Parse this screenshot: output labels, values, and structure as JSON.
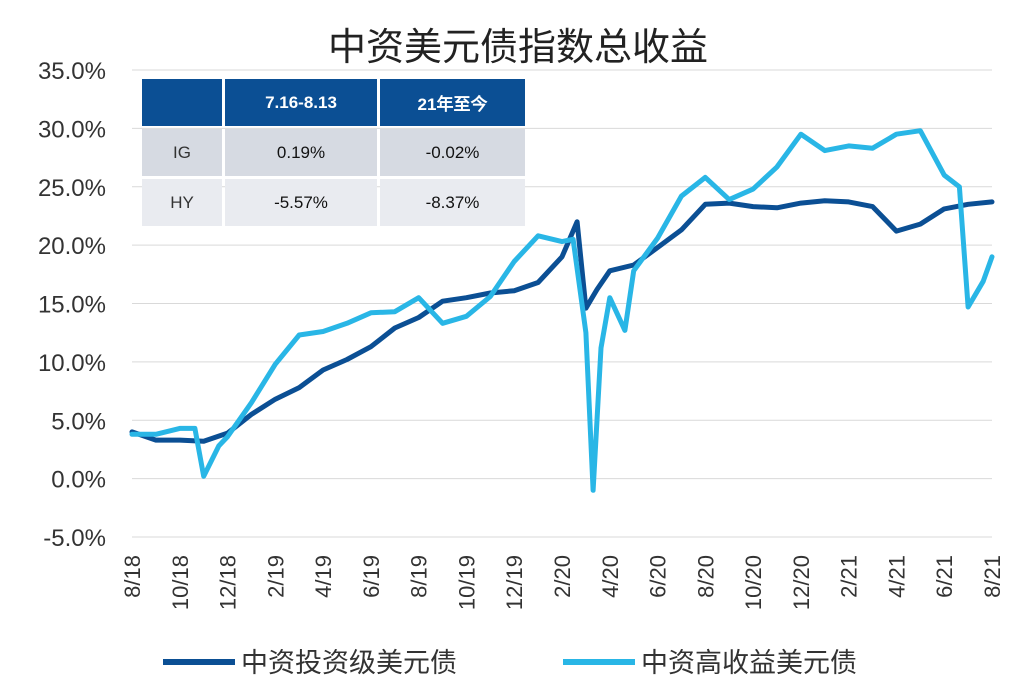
{
  "chart_data": {
    "type": "line",
    "title": "中资美元债指数总收益",
    "y_ticks": [
      "35.0%",
      "30.0%",
      "25.0%",
      "20.0%",
      "15.0%",
      "10.0%",
      "5.0%",
      "0.0%",
      "-5.0%"
    ],
    "ylim": [
      -5,
      35
    ],
    "x_ticks": [
      "8/18",
      "10/18",
      "12/18",
      "2/19",
      "4/19",
      "6/19",
      "8/19",
      "10/19",
      "12/19",
      "2/20",
      "4/20",
      "6/20",
      "8/20",
      "10/20",
      "12/20",
      "2/21",
      "4/21",
      "6/21",
      "8/21"
    ],
    "grid": true,
    "legend_position": "bottom",
    "series": [
      {
        "name": "中资投资级美元债",
        "color": "#0b4f94",
        "x": [
          "2018-08",
          "2018-09",
          "2018-10",
          "2018-11",
          "2018-12",
          "2019-01",
          "2019-02",
          "2019-03",
          "2019-04",
          "2019-05",
          "2019-06",
          "2019-07",
          "2019-08",
          "2019-09",
          "2019-10",
          "2019-11",
          "2019-12",
          "2020-01",
          "2020-02",
          "2020-02-20",
          "2020-03",
          "2020-03-15",
          "2020-04",
          "2020-05",
          "2020-06",
          "2020-07",
          "2020-08",
          "2020-09",
          "2020-10",
          "2020-11",
          "2020-12",
          "2021-01",
          "2021-02",
          "2021-03",
          "2021-04",
          "2021-05",
          "2021-06",
          "2021-07",
          "2021-08"
        ],
        "values": [
          4.0,
          3.3,
          3.3,
          3.2,
          3.9,
          5.5,
          6.8,
          7.8,
          9.3,
          10.2,
          11.3,
          12.9,
          13.8,
          15.2,
          15.5,
          15.9,
          16.1,
          16.8,
          19.0,
          22.0,
          14.6,
          16.2,
          17.8,
          18.3,
          19.8,
          21.3,
          23.5,
          23.6,
          23.3,
          23.2,
          23.6,
          23.8,
          23.7,
          23.3,
          21.2,
          21.8,
          23.1,
          23.5,
          23.7
        ]
      },
      {
        "name": "中资高收益美元债",
        "color": "#29b6e6",
        "x": [
          "2018-08",
          "2018-09",
          "2018-10",
          "2018-10-20",
          "2018-11",
          "2018-11-20",
          "2018-12",
          "2019-01",
          "2019-02",
          "2019-03",
          "2019-04",
          "2019-05",
          "2019-06",
          "2019-07",
          "2019-08",
          "2019-09",
          "2019-10",
          "2019-11",
          "2019-12",
          "2020-01",
          "2020-02",
          "2020-02-15",
          "2020-03",
          "2020-03-10",
          "2020-03-20",
          "2020-04",
          "2020-04-20",
          "2020-05",
          "2020-06",
          "2020-07",
          "2020-08",
          "2020-09",
          "2020-10",
          "2020-11",
          "2020-12",
          "2021-01",
          "2021-02",
          "2021-03",
          "2021-04",
          "2021-05",
          "2021-06",
          "2021-06-20",
          "2021-07",
          "2021-07-20",
          "2021-08"
        ],
        "values": [
          3.8,
          3.8,
          4.3,
          4.3,
          0.2,
          2.8,
          3.6,
          6.5,
          9.8,
          12.3,
          12.6,
          13.3,
          14.2,
          14.3,
          15.5,
          13.3,
          13.9,
          15.6,
          18.6,
          20.8,
          20.3,
          20.5,
          12.5,
          -1.0,
          11.2,
          15.5,
          12.7,
          17.8,
          20.6,
          24.2,
          25.8,
          23.9,
          24.8,
          26.7,
          29.5,
          28.1,
          28.5,
          28.3,
          29.5,
          29.8,
          26.0,
          25.0,
          14.7,
          16.9,
          19.0
        ]
      }
    ],
    "table": {
      "headers": [
        "",
        "7.16-8.13",
        "21年至今"
      ],
      "rows": [
        [
          "IG",
          "0.19%",
          "-0.02%"
        ],
        [
          "HY",
          "-5.57%",
          "-8.37%"
        ]
      ]
    }
  }
}
